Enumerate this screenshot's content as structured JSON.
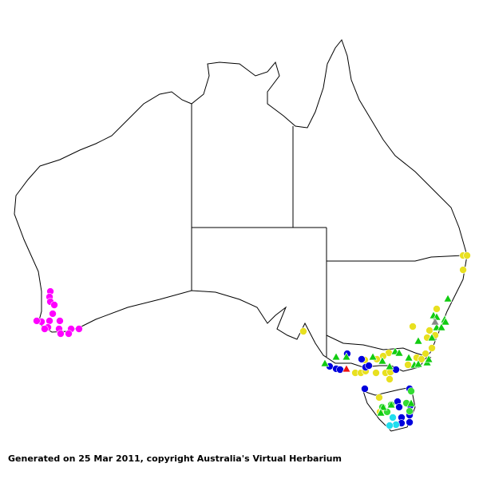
{
  "footer": {
    "text": "Generated on 25 Mar 2011, copyright Australia's Virtual Herbarium"
  },
  "map": {
    "region": "Australia",
    "projection": "equirectangular",
    "background": "#ffffff",
    "outline_color": "#000000",
    "groups": [
      {
        "id": "magenta",
        "shape": "circle",
        "color": "#ff00ff",
        "points": [
          [
            116.44,
            -31.67
          ],
          [
            116.37,
            -32.13
          ],
          [
            116.44,
            -32.53
          ],
          [
            116.79,
            -32.8
          ],
          [
            116.65,
            -33.53
          ],
          [
            116.37,
            -34.13
          ],
          [
            115.66,
            -34.2
          ],
          [
            115.24,
            -34.13
          ],
          [
            116.23,
            -34.67
          ],
          [
            117.28,
            -34.13
          ],
          [
            117.21,
            -34.8
          ],
          [
            117.35,
            -35.2
          ],
          [
            118.27,
            -34.8
          ],
          [
            118.06,
            -35.2
          ],
          [
            118.97,
            -34.8
          ],
          [
            115.94,
            -34.8
          ]
        ]
      },
      {
        "id": "yellow",
        "shape": "circle",
        "color": "#e8e020",
        "points": [
          [
            138.76,
            -35.0
          ],
          [
            152.85,
            -28.67
          ],
          [
            153.2,
            -28.67
          ],
          [
            152.85,
            -29.87
          ],
          [
            150.52,
            -33.13
          ],
          [
            148.41,
            -34.6
          ],
          [
            149.89,
            -34.93
          ],
          [
            149.68,
            -35.53
          ],
          [
            150.38,
            -35.33
          ],
          [
            150.1,
            -36.4
          ],
          [
            149.54,
            -36.87
          ],
          [
            148.76,
            -37.2
          ],
          [
            147.99,
            -37.8
          ],
          [
            149.18,
            -37.33
          ],
          [
            146.3,
            -36.8
          ],
          [
            145.8,
            -37.07
          ],
          [
            145.24,
            -37.33
          ],
          [
            145.17,
            -38.47
          ],
          [
            146.37,
            -39.0
          ],
          [
            146.01,
            -38.47
          ],
          [
            146.44,
            -38.4
          ],
          [
            144.18,
            -37.4
          ],
          [
            143.34,
            -38.47
          ],
          [
            143.83,
            -38.47
          ],
          [
            144.25,
            -38.33
          ],
          [
            145.45,
            -40.53
          ],
          [
            145.52,
            -41.73
          ]
        ]
      },
      {
        "id": "blue",
        "shape": "circle",
        "color": "#0000dd",
        "points": [
          [
            141.08,
            -37.93
          ],
          [
            141.65,
            -38.13
          ],
          [
            142.0,
            -38.2
          ],
          [
            143.9,
            -37.33
          ],
          [
            144.25,
            -38.0
          ],
          [
            144.54,
            -37.87
          ],
          [
            146.93,
            -38.2
          ],
          [
            144.18,
            -39.8
          ],
          [
            148.13,
            -39.8
          ],
          [
            147.07,
            -40.87
          ],
          [
            147.21,
            -41.33
          ],
          [
            148.2,
            -41.2
          ],
          [
            148.13,
            -42.0
          ],
          [
            147.42,
            -42.2
          ],
          [
            147.42,
            -42.67
          ],
          [
            148.13,
            -42.6
          ],
          [
            142.63,
            -36.87
          ]
        ]
      },
      {
        "id": "lightgreen",
        "shape": "circle",
        "color": "#33dd33",
        "points": [
          [
            146.51,
            -41.13
          ],
          [
            145.73,
            -41.33
          ],
          [
            147.85,
            -41.0
          ],
          [
            148.13,
            -41.67
          ],
          [
            146.15,
            -41.73
          ],
          [
            148.27,
            -40.0
          ]
        ]
      },
      {
        "id": "cyan",
        "shape": "circle",
        "color": "#22ddee",
        "points": [
          [
            146.65,
            -42.2
          ],
          [
            146.93,
            -42.8
          ],
          [
            146.37,
            -42.87
          ]
        ]
      },
      {
        "id": "green-triangle",
        "shape": "triangle",
        "color": "#11cc11",
        "points": [
          [
            151.51,
            -32.27
          ],
          [
            150.24,
            -33.67
          ],
          [
            150.52,
            -33.8
          ],
          [
            151.23,
            -34.0
          ],
          [
            151.3,
            -34.2
          ],
          [
            150.52,
            -34.67
          ],
          [
            150.94,
            -34.67
          ],
          [
            148.9,
            -35.8
          ],
          [
            150.1,
            -35.53
          ],
          [
            146.86,
            -36.67
          ],
          [
            147.21,
            -36.8
          ],
          [
            148.06,
            -37.2
          ],
          [
            148.55,
            -37.8
          ],
          [
            148.9,
            -37.73
          ],
          [
            149.68,
            -37.6
          ],
          [
            149.82,
            -37.33
          ],
          [
            144.89,
            -37.13
          ],
          [
            145.73,
            -37.47
          ],
          [
            146.37,
            -37.93
          ],
          [
            141.65,
            -37.13
          ],
          [
            140.66,
            -37.67
          ],
          [
            142.56,
            -37.13
          ],
          [
            146.51,
            -41.13
          ],
          [
            148.27,
            -41.0
          ],
          [
            145.8,
            -41.33
          ],
          [
            145.59,
            -41.8
          ]
        ]
      },
      {
        "id": "grey-triangle",
        "shape": "triangle",
        "color": "#888888",
        "points": [
          [
            150.38,
            -34.2
          ]
        ]
      },
      {
        "id": "red-triangle",
        "shape": "triangle",
        "color": "#ee1111",
        "points": [
          [
            142.56,
            -38.13
          ]
        ]
      }
    ]
  }
}
